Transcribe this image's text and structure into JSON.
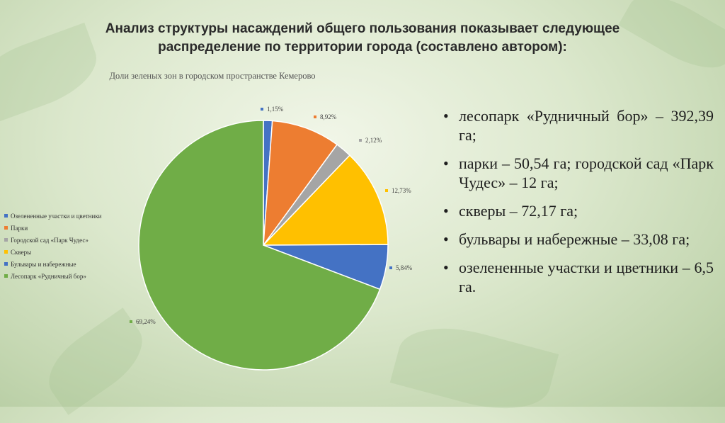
{
  "title": {
    "line1": "Анализ структуры насаждений общего пользования показывает следующее",
    "line2": "распределение по территории города (составлено автором):"
  },
  "chart_data": {
    "type": "pie",
    "title": "Доли зеленых зон в городском пространстве Кемерово",
    "slices": [
      {
        "name": "Озелененные участки и цветники",
        "value": 1.15,
        "label": "1,15%",
        "color": "#4472c4"
      },
      {
        "name": "Парки",
        "value": 8.92,
        "label": "8,92%",
        "color": "#ed7d31"
      },
      {
        "name": "Городской сад «Парк Чудес»",
        "value": 2.12,
        "label": "2,12%",
        "color": "#a5a5a5"
      },
      {
        "name": "Скверы",
        "value": 12.73,
        "label": "12,73%",
        "color": "#ffc000"
      },
      {
        "name": "Бульвары и набережные",
        "value": 5.84,
        "label": "5,84%",
        "color": "#4472c4"
      },
      {
        "name": "Лесопарк «Рудничный бор»",
        "value": 69.24,
        "label": "69,24%",
        "color": "#70ad47"
      }
    ],
    "legend_position": "left"
  },
  "bullets": [
    "лесопарк «Рудничный бор» – 392,39 га;",
    "парки – 50,54 га; городской сад «Парк Чудес» – 12 га;",
    "скверы – 72,17 га;",
    "бульвары и набережные – 33,08 га;",
    "озелененные участки и цветники – 6,5 га."
  ]
}
